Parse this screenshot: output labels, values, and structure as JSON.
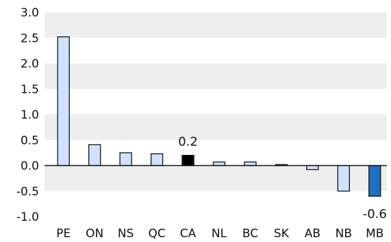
{
  "chart_data": {
    "type": "bar",
    "categories": [
      "PE",
      "ON",
      "NS",
      "QC",
      "CA",
      "NL",
      "BC",
      "SK",
      "AB",
      "NB",
      "MB"
    ],
    "values": [
      2.52,
      0.41,
      0.25,
      0.23,
      0.2,
      0.07,
      0.07,
      0.02,
      -0.08,
      -0.5,
      -0.6
    ],
    "ylim": [
      -1.0,
      3.0
    ],
    "yticks": [
      "3.0",
      "2.5",
      "2.0",
      "1.5",
      "1.0",
      "0.5",
      "0.0",
      "-0.5",
      "-1.0"
    ],
    "data_labels": [
      {
        "category": "CA",
        "text": "0.2"
      },
      {
        "category": "MB",
        "text": "-0.6"
      }
    ],
    "grid": "horizontal bands",
    "colors": {
      "default_bar": "#cfe2ff",
      "CA": "#000000",
      "MB": "#1f6fc4",
      "band": "#eeeeee",
      "bar_outline": "#111111"
    }
  }
}
